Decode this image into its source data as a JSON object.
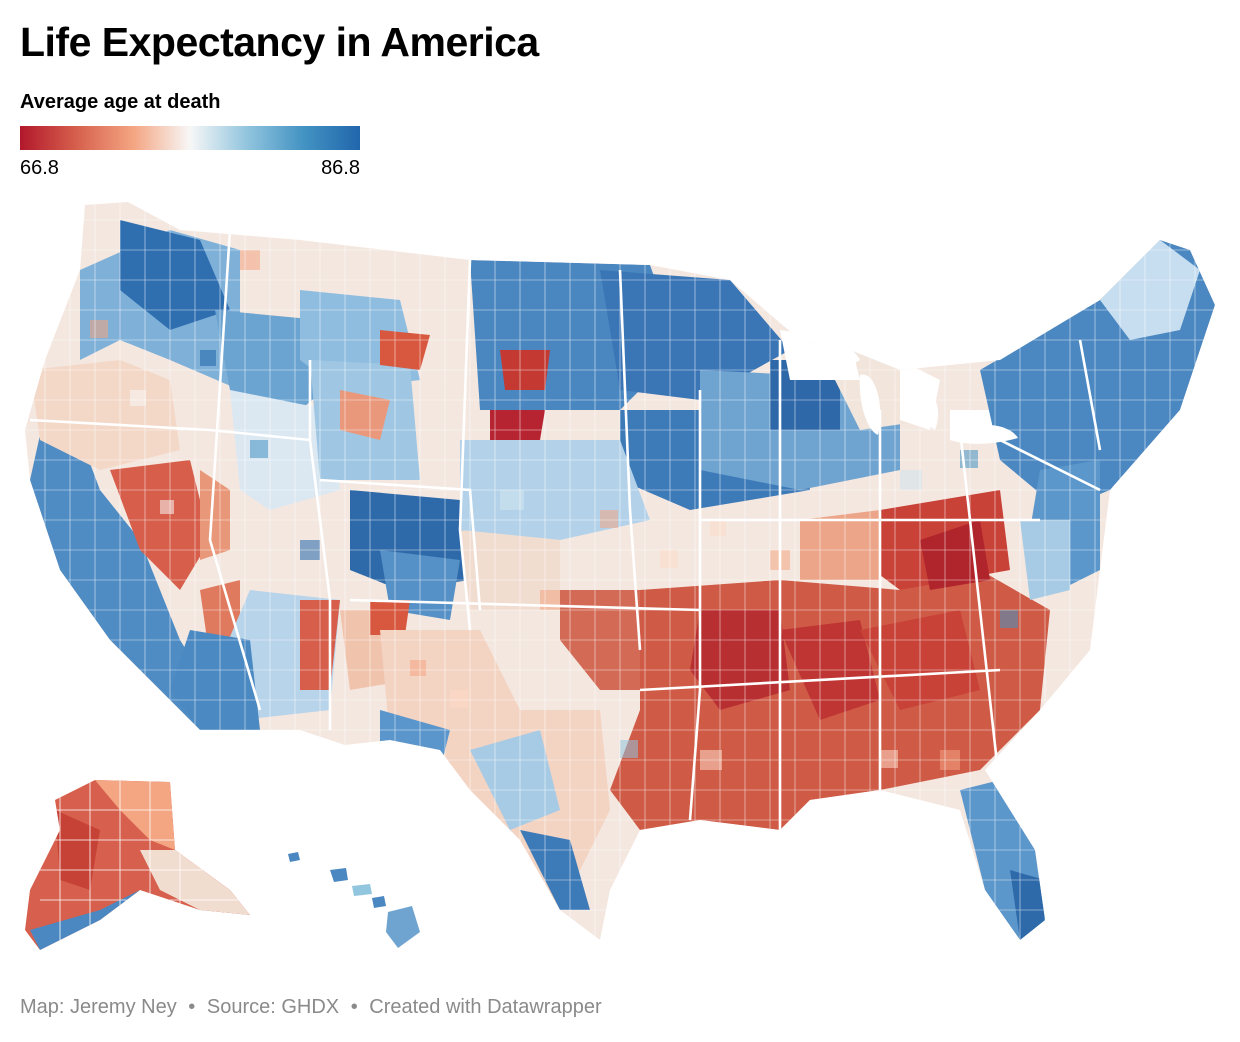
{
  "title": "Life Expectancy in America",
  "legend": {
    "title": "Average age at death",
    "min_label": "66.8",
    "max_label": "86.8",
    "min_value": 66.8,
    "max_value": 86.8,
    "colors": [
      "#b2182b",
      "#d6604d",
      "#f4a582",
      "#f7f7f7",
      "#92c5de",
      "#4393c3",
      "#2166ac"
    ]
  },
  "map_data": {
    "type": "choropleth",
    "unit": "county",
    "palette": "diverging red-blue"
  },
  "footer": {
    "map_by": "Map: Jeremy Ney",
    "source": "Source: GHDX",
    "tool": "Created with Datawrapper",
    "separator": "•"
  }
}
